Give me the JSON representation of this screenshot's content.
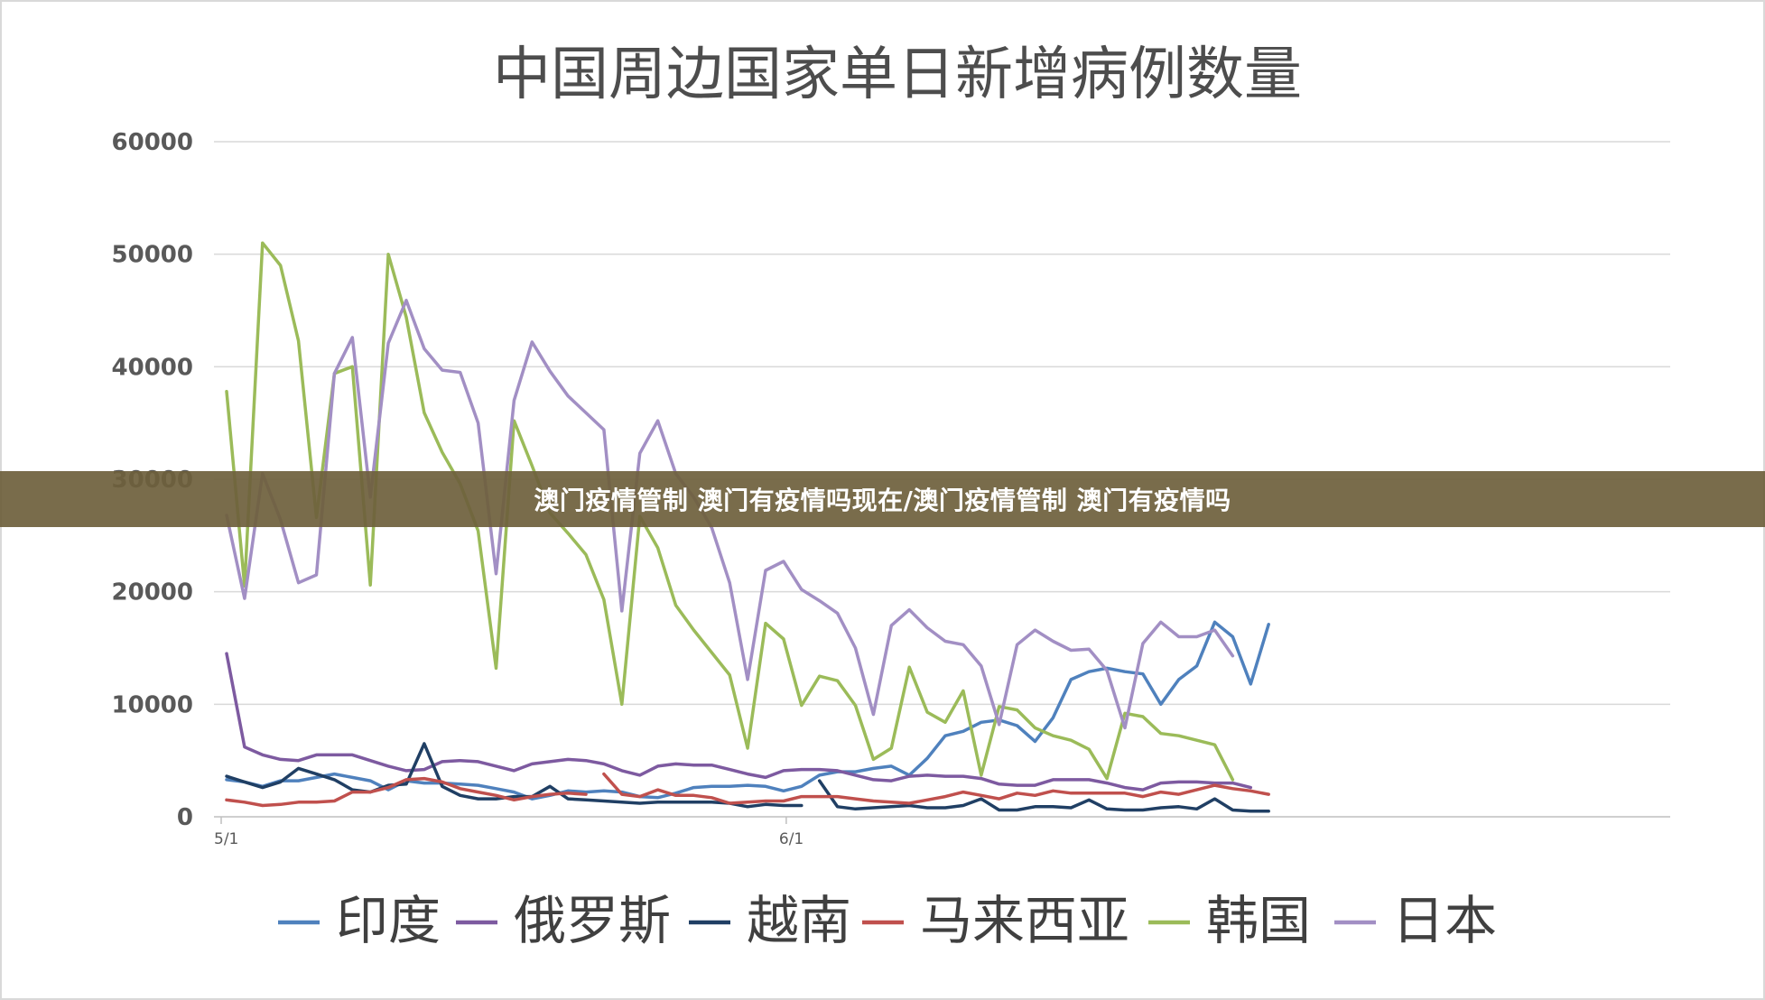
{
  "banner": {
    "text": "澳门疫情管制 澳门有疫情吗现在/澳门疫情管制 澳门有疫情吗"
  },
  "chart_data": {
    "type": "line",
    "title": "中国周边国家单日新增病例数量",
    "xlabel": "",
    "ylabel": "",
    "ylim": [
      0,
      60000
    ],
    "yticks": [
      0,
      10000,
      20000,
      30000,
      40000,
      50000,
      60000
    ],
    "ytick_labels": [
      "0",
      "10000",
      "20000",
      "30000",
      "40000",
      "50000",
      "60000"
    ],
    "xtick_labels": [
      "5/1",
      "6/1"
    ],
    "xtick_days": [
      0,
      31
    ],
    "x_day_count": 59,
    "grid": true,
    "legend_position": "bottom",
    "series": [
      {
        "name": "印度",
        "color": "#4f81bd",
        "start_day": 0,
        "values": [
          3300,
          3100,
          2700,
          3200,
          3200,
          3500,
          3800,
          3500,
          3200,
          2400,
          3200,
          3000,
          3000,
          2900,
          2800,
          2500,
          2200,
          1600,
          1900,
          2300,
          2200,
          2300,
          2200,
          1800,
          1700,
          2100,
          2600,
          2700,
          2700,
          2800,
          2700,
          2300,
          2700,
          3700,
          4000,
          4000,
          4300,
          4500,
          3700,
          5200,
          7200,
          7600,
          8400,
          8600,
          8100,
          6700,
          8800,
          12200,
          12900,
          13200,
          12900,
          12700,
          10000,
          12200,
          13400,
          17300,
          16000,
          11800,
          17100
        ]
      },
      {
        "name": "俄罗斯",
        "color": "#7d5aa0",
        "start_day": 0,
        "values": [
          14500,
          6200,
          5500,
          5100,
          5000,
          5500,
          5500,
          5500,
          5000,
          4500,
          4100,
          4200,
          4900,
          5000,
          4900,
          4500,
          4100,
          4700,
          4900,
          5100,
          5000,
          4700,
          4100,
          3700,
          4500,
          4700,
          4600,
          4600,
          4200,
          3800,
          3500,
          4100,
          4200,
          4200,
          4100,
          3700,
          3300,
          3200,
          3600,
          3700,
          3600,
          3600,
          3400,
          2900,
          2800,
          2800,
          3300,
          3300,
          3300,
          3000,
          2600,
          2400,
          3000,
          3100,
          3100,
          3000,
          3000,
          2600
        ]
      },
      {
        "name": "越南",
        "color": "#203f64",
        "segments": [
          {
            "start_day": 0,
            "values": [
              3600,
              3100,
              2600,
              3100,
              4300,
              3800,
              3300,
              2400,
              2200,
              2800,
              2900,
              6500,
              2700,
              1900,
              1600,
              1600,
              1800,
              1800,
              2700,
              1600,
              1500,
              1400,
              1300,
              1200,
              1300,
              1300,
              1300,
              1300,
              1200,
              900,
              1100,
              1000,
              1000
            ]
          },
          {
            "start_day": 33,
            "values": [
              3200,
              900,
              700,
              800,
              900,
              1000,
              800,
              800,
              1000,
              1600,
              600,
              600,
              900,
              900,
              800,
              1500,
              700,
              600,
              600,
              800,
              900,
              700,
              1600,
              600,
              500,
              500
            ]
          }
        ]
      },
      {
        "name": "马来西亚",
        "color": "#c0504d",
        "segments": [
          {
            "start_day": 0,
            "values": [
              1500,
              1300,
              1000,
              1100,
              1300,
              1300,
              1400,
              2200,
              2200,
              2600,
              3300,
              3400,
              3100,
              2500,
              2200,
              1900,
              1500,
              1800,
              2000,
              2100,
              2000
            ]
          },
          {
            "start_day": 21,
            "values": [
              3800,
              2000,
              1800,
              2400,
              1900,
              1900,
              1700,
              1200,
              1300,
              1400,
              1400,
              1800,
              1800,
              1800,
              1600,
              1400,
              1300,
              1200,
              1500,
              1800,
              2200,
              1900,
              1600,
              2100,
              1900,
              2300,
              2100,
              2100,
              2100,
              2100,
              1800,
              2200,
              2000,
              2400,
              2800,
              2500,
              2300,
              2000
            ]
          }
        ]
      },
      {
        "name": "韩国",
        "color": "#9bbb59",
        "start_day": 0,
        "values": [
          37800,
          20500,
          51000,
          49000,
          42300,
          26600,
          39400,
          40000,
          20600,
          50000,
          44400,
          35900,
          32400,
          29600,
          25400,
          13200,
          35200,
          31200,
          27000,
          25200,
          23300,
          19300,
          10000,
          26700,
          23900,
          18800,
          16600,
          14600,
          12600,
          6100,
          17200,
          15800,
          9900,
          12500,
          12100,
          9900,
          5100,
          6100,
          13300,
          9300,
          8400,
          11200,
          3700,
          9800,
          9500,
          7900,
          7200,
          6800,
          6000,
          3400,
          9200,
          8900,
          7400,
          7200,
          6800,
          6400,
          3300
        ]
      },
      {
        "name": "日本",
        "color": "#a28fc4",
        "start_day": 0,
        "values": [
          26800,
          19400,
          30500,
          26400,
          20800,
          21500,
          39400,
          42600,
          28400,
          42100,
          45900,
          41600,
          39700,
          39500,
          35000,
          21600,
          37000,
          42200,
          39600,
          37400,
          35900,
          34400,
          18300,
          32300,
          35200,
          30500,
          28400,
          25700,
          20800,
          12200,
          21900,
          22700,
          20200,
          19200,
          18100,
          15000,
          9100,
          17000,
          18400,
          16800,
          15600,
          15300,
          13400,
          8200,
          15300,
          16600,
          15600,
          14800,
          14900,
          13000,
          7900,
          15400,
          17300,
          16000,
          16000,
          16600,
          14300
        ]
      }
    ]
  }
}
